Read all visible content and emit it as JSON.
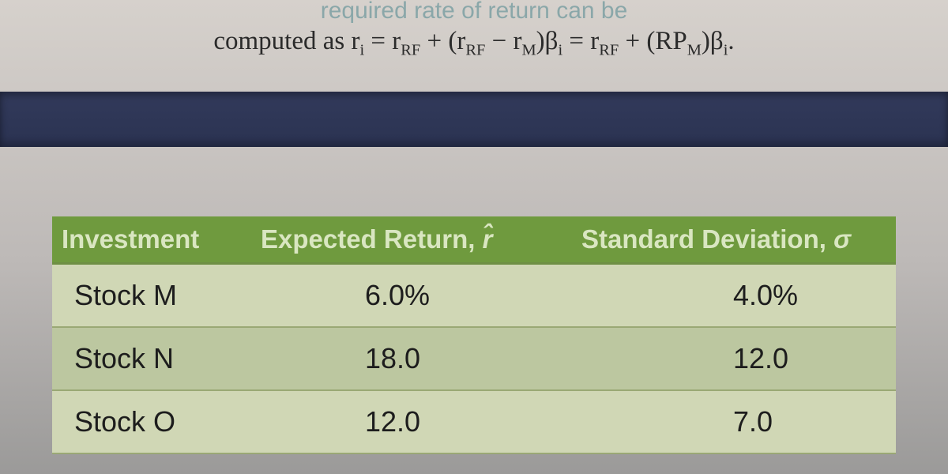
{
  "formula": {
    "faint_text": "required rate of return can be",
    "prefix": "computed as ",
    "lhs": "r",
    "lhs_sub": "i",
    "eq": " = r",
    "rf_sub": "RF",
    "plus_open": " + (r",
    "minus": " − r",
    "m_sub": "M",
    "close1": ")β",
    "i_sub": "i",
    "eq2": " = r",
    "plus2": " + (RP",
    "close2": ")β",
    "period": "."
  },
  "table": {
    "headers": {
      "h1": "Investment",
      "h2_pre": "Expected Return, ",
      "h2_sym": "r̂",
      "h3_pre": "Standard Deviation, ",
      "h3_sym": "σ"
    },
    "rows": [
      {
        "name": "Stock M",
        "ret": "6.0%",
        "sd": "4.0%"
      },
      {
        "name": "Stock N",
        "ret": "18.0",
        "sd": "12.0"
      },
      {
        "name": "Stock O",
        "ret": "12.0",
        "sd": "7.0"
      }
    ],
    "header_bg": "#6f9a3e",
    "header_fg": "#d9e6c1",
    "row_odd_bg": "#d0d7b5",
    "row_even_bg": "#bcc7a0",
    "border_color": "#9aa875",
    "font_size_header": 33,
    "font_size_cell": 36
  },
  "dark_bar_color": "#2b3352",
  "page_bg_top": "#d6d1cc",
  "page_bg_bottom": "#9b9a99"
}
